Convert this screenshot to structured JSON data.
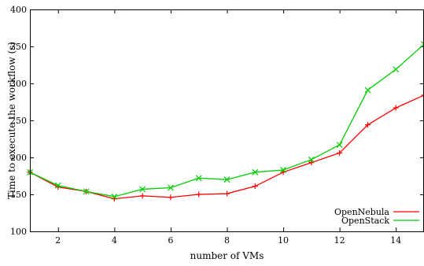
{
  "chart_data": {
    "type": "line",
    "title": "",
    "xlabel": "number of VMs",
    "ylabel": "Time to execute the workflow (s)",
    "xlim": [
      1,
      15
    ],
    "ylim": [
      100,
      400
    ],
    "x_ticks": [
      2,
      4,
      6,
      8,
      10,
      12,
      14
    ],
    "y_ticks": [
      100,
      150,
      200,
      250,
      300,
      350,
      400
    ],
    "grid": false,
    "legend_position": "bottom-right",
    "x": [
      1,
      2,
      3,
      4,
      5,
      6,
      7,
      8,
      9,
      10,
      11,
      12,
      13,
      14,
      15
    ],
    "series": [
      {
        "name": "OpenNebula",
        "color": "#ff0000",
        "marker": "plus",
        "values": [
          180,
          160,
          154,
          144,
          148,
          146,
          150,
          151,
          161,
          180,
          193,
          206,
          244,
          267,
          284
        ]
      },
      {
        "name": "OpenStack",
        "color": "#00cc00",
        "marker": "x",
        "values": [
          180,
          162,
          154,
          147,
          157,
          159,
          172,
          170,
          180,
          183,
          197,
          217,
          291,
          319,
          353
        ]
      }
    ]
  }
}
